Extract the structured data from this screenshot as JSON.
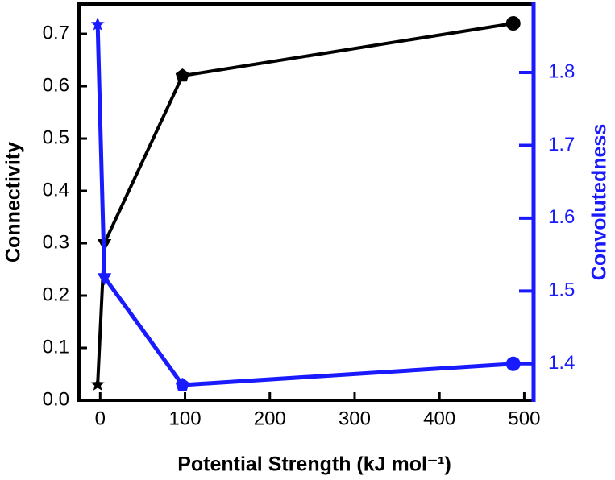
{
  "chart_data": {
    "type": "line",
    "x_label": "Potential Strength (kJ mol⁻¹)",
    "y_label": "Connectivity",
    "y2_label": "Convolutedness",
    "xlim": [
      -25,
      511
    ],
    "xticks": [
      0,
      100,
      200,
      300,
      400,
      500
    ],
    "ylim": [
      0,
      0.757
    ],
    "yticks": [
      {
        "value": 0,
        "label": "0.0"
      },
      0.1,
      0.2,
      0.3,
      0.4,
      0.5,
      0.6,
      0.7
    ],
    "y2lim": [
      1.35,
      1.894
    ],
    "y2ticks": [
      1.4,
      1.5,
      1.6,
      1.7,
      1.8
    ],
    "markers": [
      "star",
      "triangle-down",
      "pentagon",
      "circle"
    ],
    "series": [
      {
        "name": "Connectivity",
        "color": "#000000",
        "x": [
          -3,
          5,
          97,
          487
        ],
        "values": [
          0.03,
          0.3,
          0.62,
          0.72
        ]
      },
      {
        "name": "Convolutedness",
        "color": "#1a1aff",
        "axis": "y2",
        "x": [
          -3,
          5,
          97,
          487
        ],
        "values": [
          1.866,
          1.519,
          1.371,
          1.4
        ]
      }
    ]
  }
}
